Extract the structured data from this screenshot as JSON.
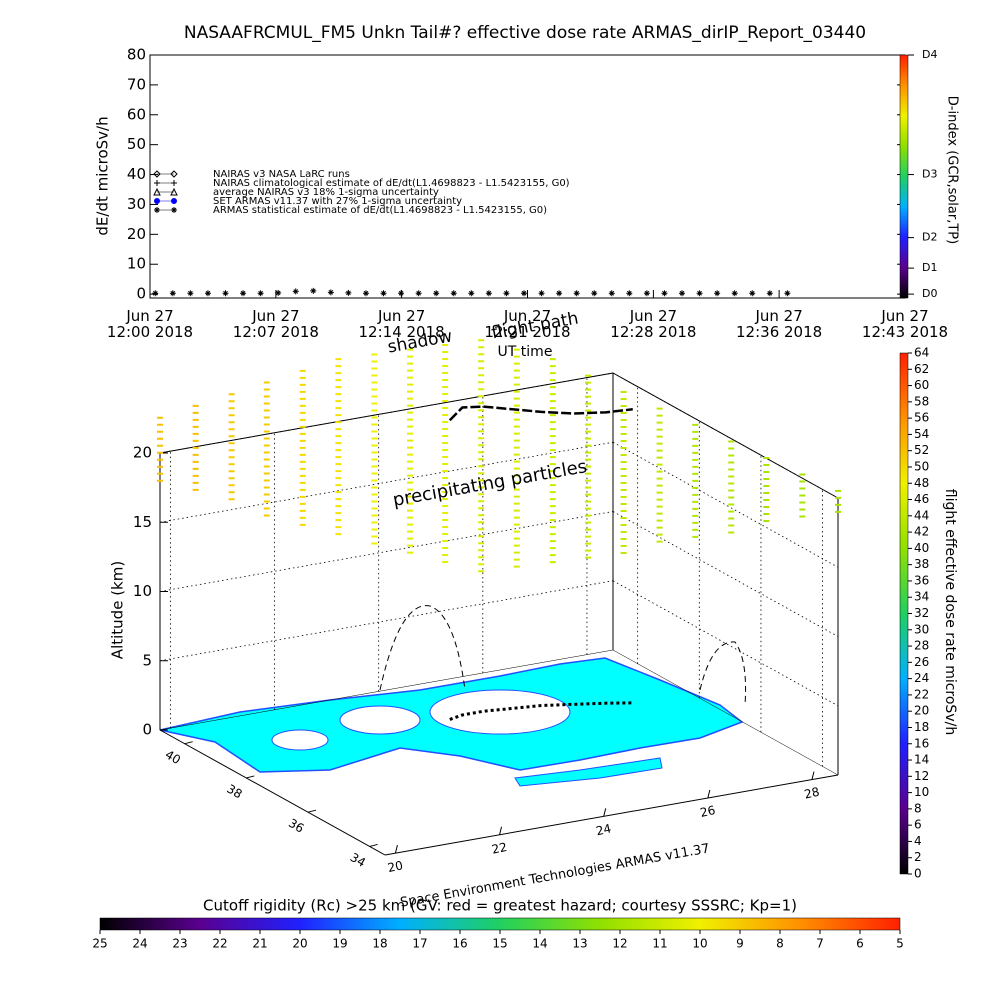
{
  "chart_data": [
    {
      "type": "line",
      "title": "NASAAFRCMUL_FM5 Unkn Tail#? effective dose rate ARMAS_dirIP_Report_03440",
      "ylabel": "dE/dt microSv/h",
      "xlabel": "UT time",
      "xlim": [
        0,
        43
      ],
      "ylim": [
        -1.3,
        80
      ],
      "yticks": [
        0,
        10,
        20,
        30,
        40,
        50,
        60,
        70,
        80
      ],
      "xticks": [
        {
          "value": 0,
          "label": "Jun 27\n12:00 2018"
        },
        {
          "value": 7.17,
          "label": "Jun 27\n12:07 2018"
        },
        {
          "value": 14.33,
          "label": "Jun 27\n12:14 2018"
        },
        {
          "value": 21.5,
          "label": "Jun 27\n12:21 2018"
        },
        {
          "value": 28.67,
          "label": "Jun 27\n12:28 2018"
        },
        {
          "value": 35.83,
          "label": "Jun 27\n12:36 2018"
        },
        {
          "value": 43,
          "label": "Jun 27\n12:43 2018"
        }
      ],
      "series": [
        {
          "name": "NAIRAS v3 NASA LaRC runs",
          "marker": "diamond",
          "color": "#000000",
          "x": [],
          "values": []
        },
        {
          "name": "NAIRAS climatological estimate of dE/dt(L1.4698823 - L1.5423155, G0)",
          "marker": "plus",
          "color": "#000000",
          "x": [],
          "values": []
        },
        {
          "name": "average NAIRAS v3 18% 1-sigma uncertainty",
          "marker": "triangle",
          "color": "#000000",
          "x": [],
          "values": []
        },
        {
          "name": "SET ARMAS v11.37 with 27% 1-sigma uncertainty",
          "marker": "circle",
          "color": "#0000ff",
          "x": [],
          "values": []
        },
        {
          "name": "ARMAS statistical estimate of dE/dt(L1.4698823 - L1.5423155, G0)",
          "marker": "asterisk",
          "color": "#000000",
          "x": [
            0.3,
            1.3,
            2.3,
            3.3,
            4.3,
            5.3,
            6.3,
            7.3,
            8.3,
            9.3,
            10.3,
            11.3,
            12.3,
            13.3,
            14.3,
            15.3,
            16.3,
            17.3,
            18.3,
            19.3,
            20.3,
            21.3,
            22.3,
            23.3,
            24.3,
            25.3,
            26.3,
            27.3,
            28.3,
            29.3,
            30.3,
            31.3,
            32.3,
            33.3,
            34.3,
            35.3,
            36.3
          ],
          "values": [
            0.3,
            0.3,
            0.3,
            0.3,
            0.3,
            0.3,
            0.3,
            0.4,
            0.9,
            1.1,
            0.6,
            0.4,
            0.3,
            0.3,
            0.3,
            0.3,
            0.3,
            0.3,
            0.3,
            0.3,
            0.3,
            0.3,
            0.3,
            0.3,
            0.3,
            0.3,
            0.3,
            0.3,
            0.3,
            0.3,
            0.3,
            0.3,
            0.3,
            0.3,
            0.3,
            0.3,
            0.3
          ]
        }
      ],
      "colorbar": {
        "label": "D-index (GCR,solar,TP)",
        "ticks": [
          {
            "value": 0,
            "label": "D0"
          },
          {
            "value": 8.7,
            "label": "D1"
          },
          {
            "value": 18.9,
            "label": "D2"
          },
          {
            "value": 40,
            "label": "D3"
          },
          {
            "value": 80,
            "label": "D4"
          }
        ],
        "colors": [
          "#000000",
          "#5a0090",
          "#2020ff",
          "#00b0ff",
          "#20d060",
          "#90e000",
          "#f0f000",
          "#ff9000",
          "#ff2000"
        ]
      }
    },
    {
      "type": "3d",
      "annotations": [
        "shadow",
        "flight path",
        "precipitating particles",
        "Space Environment Technologies ARMAS v11.37"
      ],
      "zlabel": "Altitude (km)",
      "zlim": [
        0,
        20
      ],
      "zticks": [
        0,
        5,
        10,
        15,
        20
      ],
      "xlim": [
        19.8,
        28.5
      ],
      "xticks": [
        20,
        22,
        24,
        26,
        28
      ],
      "ylim": [
        33.5,
        40.8
      ],
      "yticks": [
        34,
        36,
        38,
        40
      ],
      "flight_path": {
        "lon": [
          24.3,
          24.6,
          25.0,
          25.5,
          26.0,
          26.5,
          27.0,
          27.4
        ],
        "lat": [
          39.0,
          39.1,
          39.1,
          39.0,
          38.9,
          38.7,
          38.5,
          38.3
        ],
        "alt": [
          21.6,
          22.2,
          22.0,
          21.6,
          21.2,
          21.0,
          21.0,
          21.2
        ]
      },
      "columns": {
        "lon": [
          19.8,
          20.26,
          20.72,
          21.17,
          21.63,
          22.09,
          22.55,
          23.01,
          23.46,
          23.92,
          24.38,
          24.84,
          25.29,
          25.75,
          26.21,
          26.67,
          27.13,
          27.58,
          28.04,
          28.5
        ],
        "lat": [
          40.8,
          40.42,
          40.03,
          39.65,
          39.26,
          38.88,
          38.49,
          38.11,
          37.73,
          37.34,
          36.96,
          36.57,
          36.19,
          35.81,
          35.42,
          35.04,
          34.65,
          34.27,
          33.88,
          33.5
        ],
        "alt_bottom": [
          18,
          17.5,
          17,
          16,
          15.5,
          15,
          14.5,
          14,
          13.5,
          13,
          13.5,
          14,
          14.5,
          15,
          16,
          16.5,
          17,
          18,
          18.5,
          19
        ],
        "alt_top": [
          23,
          24,
          25,
          26,
          27,
          28,
          28.5,
          29,
          29.5,
          30,
          29.5,
          29,
          28,
          27,
          26,
          25,
          24,
          23,
          22,
          21
        ],
        "dose": [
          52,
          52,
          51,
          51,
          50,
          49,
          48,
          47,
          47,
          46,
          46,
          45,
          45,
          44,
          44,
          43,
          43,
          42,
          42,
          42
        ]
      },
      "colorbar": {
        "label": "flight effective dose rate microSv/h",
        "lim": [
          0,
          64
        ],
        "ticks": [
          0,
          2,
          4,
          6,
          8,
          10,
          12,
          14,
          16,
          18,
          20,
          22,
          24,
          26,
          28,
          30,
          32,
          34,
          36,
          38,
          40,
          42,
          44,
          46,
          48,
          50,
          52,
          54,
          56,
          58,
          60,
          62,
          64
        ],
        "colors": [
          "#000000",
          "#5a0090",
          "#2020ff",
          "#00b0ff",
          "#20d060",
          "#90e000",
          "#f0f000",
          "#ff9000",
          "#ff2000"
        ]
      }
    },
    {
      "type": "colorbar",
      "title": "Cutoff rigidity (Rc) >25 km (GV: red = greatest hazard; courtesy SSSRC; Kp=1)",
      "xlim": [
        25,
        5
      ],
      "xticks": [
        25,
        24,
        23,
        22,
        21,
        20,
        19,
        18,
        17,
        16,
        15,
        14,
        13,
        12,
        11,
        10,
        9,
        8,
        7,
        6,
        5
      ],
      "colors": [
        "#000000",
        "#5a0090",
        "#2020ff",
        "#00b0ff",
        "#20d060",
        "#90e000",
        "#f0f000",
        "#ff9000",
        "#ff2000"
      ]
    }
  ]
}
